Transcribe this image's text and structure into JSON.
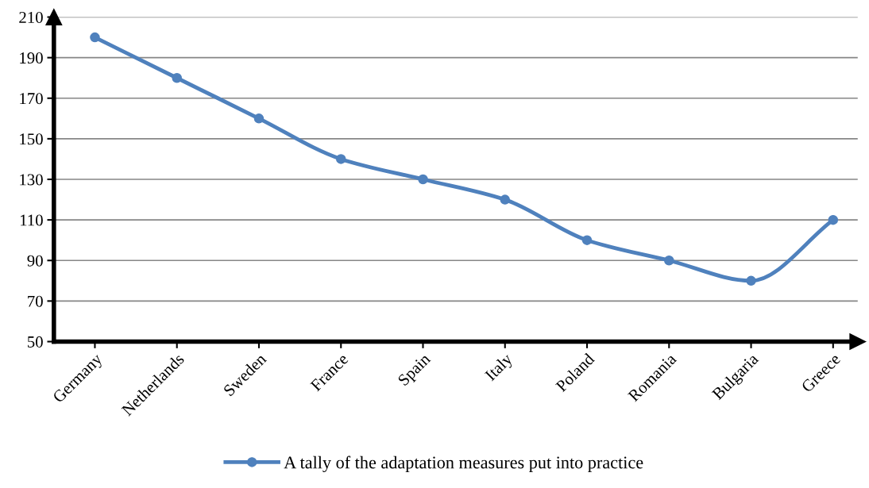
{
  "chart_data": {
    "type": "line",
    "categories": [
      "Germany",
      "Netherlands",
      "Sweden",
      "France",
      "Spain",
      "Italy",
      "Poland",
      "Romania",
      "Bulgaria",
      "Greece"
    ],
    "series": [
      {
        "name": "A tally of the adaptation measures put into practice",
        "color": "#4f81bd",
        "values": [
          200,
          180,
          160,
          140,
          130,
          120,
          100,
          90,
          80,
          110
        ]
      }
    ],
    "ylim": [
      50,
      210
    ],
    "yticks": [
      50,
      70,
      90,
      110,
      130,
      150,
      170,
      190,
      210
    ],
    "grid": "y",
    "legend": "bottom",
    "marker": "circle",
    "line_style": "solid"
  }
}
